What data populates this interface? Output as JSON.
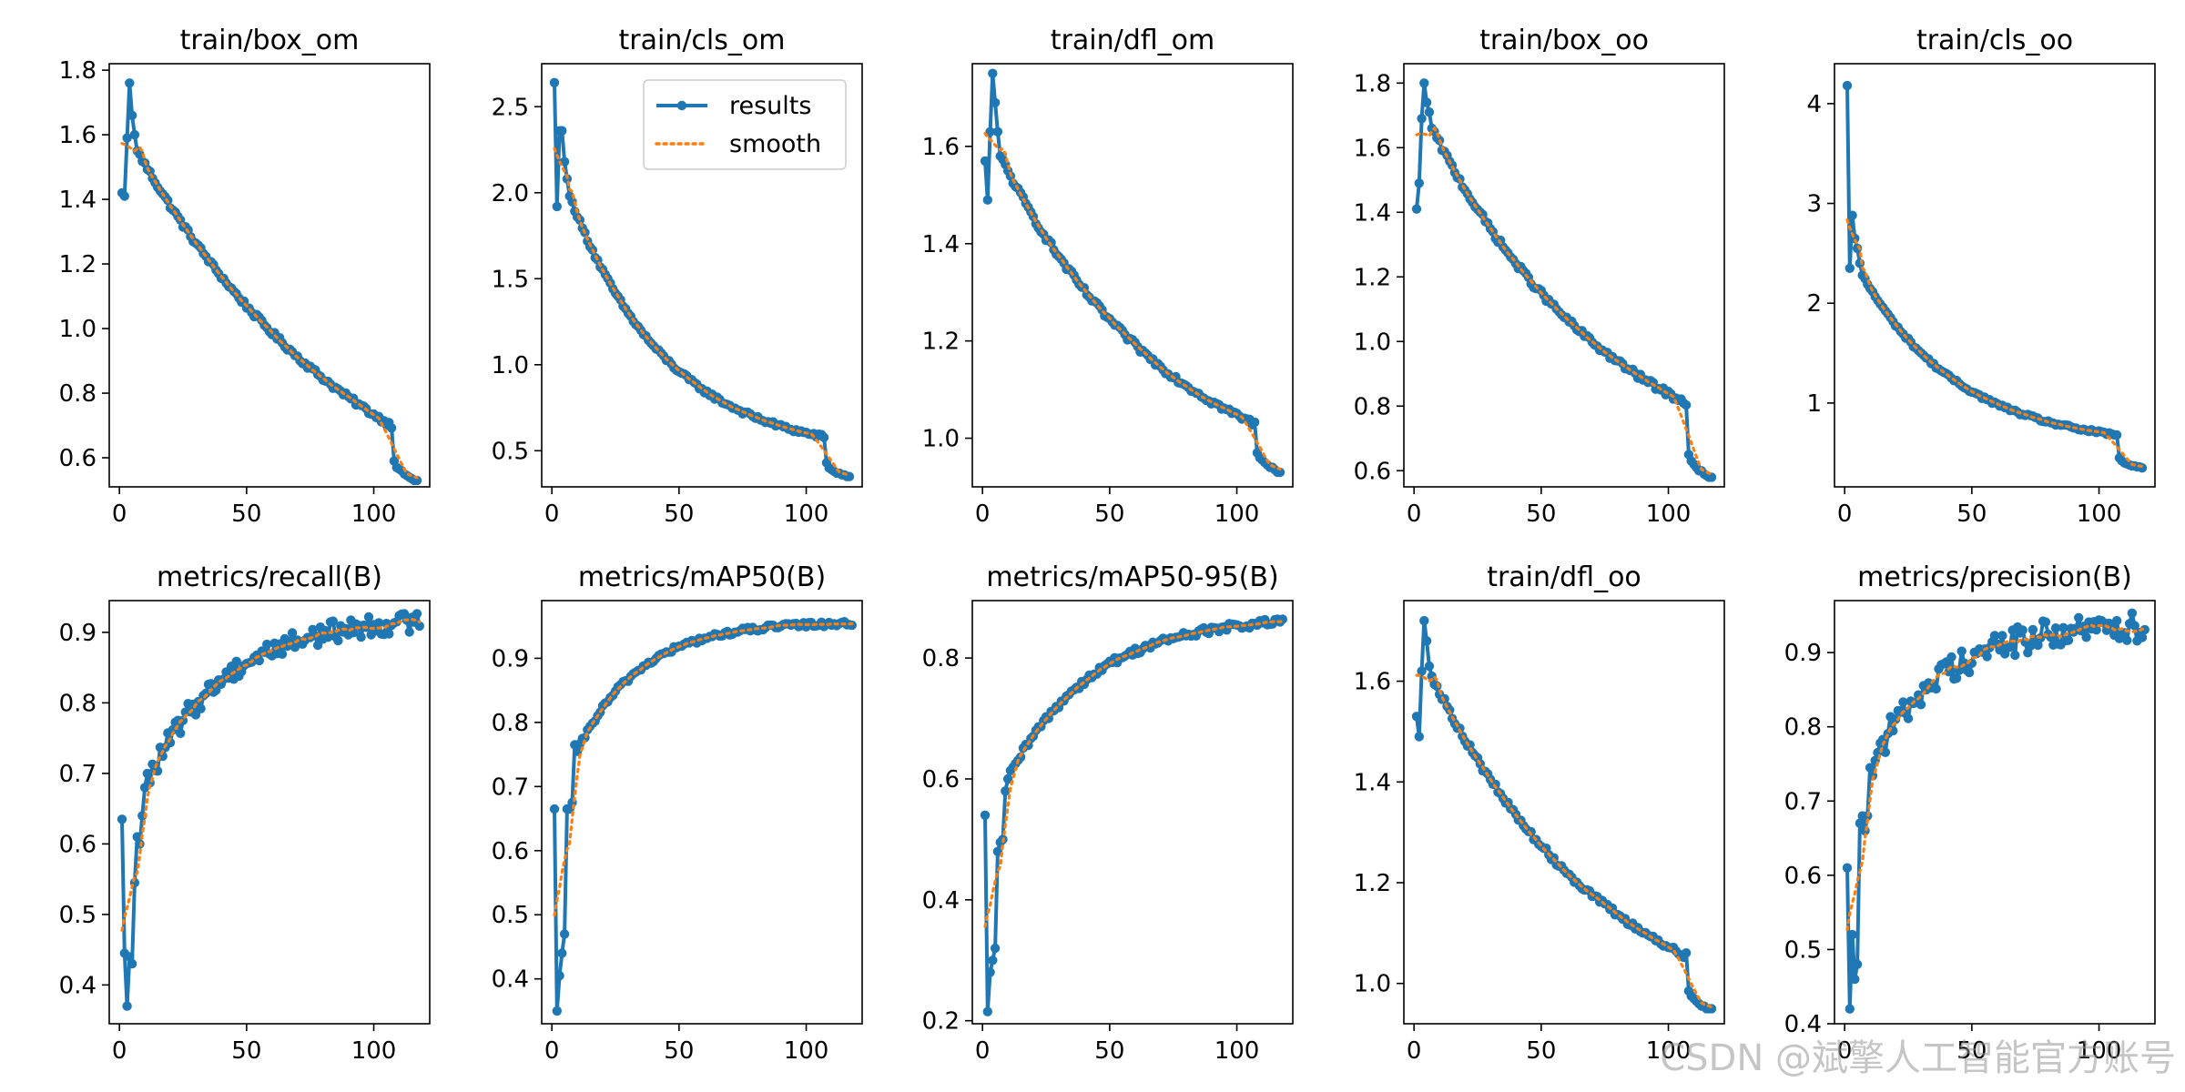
{
  "colors": {
    "results": "#1f77b4",
    "smooth": "#ff7f0e",
    "axis": "#000000"
  },
  "watermark": "CSDN @斌擎人工智能官方账号",
  "legend": {
    "results_label": "results",
    "smooth_label": "smooth"
  },
  "chart_data": [
    {
      "type": "line",
      "title": "train/box_om",
      "xticks": [
        0,
        50,
        100
      ],
      "xlim": [
        -4,
        122
      ],
      "yticks": [
        0.6,
        0.8,
        1.0,
        1.2,
        1.4,
        1.6,
        1.8
      ],
      "ytick_labels": [
        "0.6",
        "0.8",
        "1.0",
        "1.2",
        "1.4",
        "1.6",
        "1.8"
      ],
      "ylim": [
        0.51,
        1.82
      ],
      "spikes": [
        [
          1,
          1.42
        ],
        [
          2,
          1.41
        ],
        [
          3,
          1.59
        ],
        [
          4,
          1.76
        ],
        [
          5,
          1.66
        ],
        [
          6,
          1.6
        ],
        [
          7,
          1.55
        ]
      ],
      "decay": {
        "x0": 7,
        "y0": 1.55,
        "x1": 107,
        "y1": 0.7,
        "shape": 1.1,
        "wiggle": 0.008
      },
      "drop": {
        "x": 108,
        "values": [
          0.59,
          0.57,
          0.565,
          0.56,
          0.55,
          0.545,
          0.54,
          0.535,
          0.53,
          0.53
        ]
      },
      "legend": false
    },
    {
      "type": "line",
      "title": "train/cls_om",
      "xticks": [
        0,
        50,
        100
      ],
      "xlim": [
        -4,
        122
      ],
      "yticks": [
        0.5,
        1.0,
        1.5,
        2.0,
        2.5
      ],
      "ytick_labels": [
        "0.5",
        "1.0",
        "1.5",
        "2.0",
        "2.5"
      ],
      "ylim": [
        0.29,
        2.75
      ],
      "spikes": [
        [
          1,
          2.64
        ],
        [
          2,
          1.92
        ],
        [
          3,
          2.36
        ],
        [
          4,
          2.36
        ],
        [
          5,
          2.18
        ],
        [
          6,
          2.08
        ],
        [
          7,
          1.98
        ]
      ],
      "decay": {
        "x0": 7,
        "y0": 1.98,
        "x1": 107,
        "y1": 0.58,
        "shape": 2.6,
        "wiggle": 0.012
      },
      "drop": {
        "x": 108,
        "values": [
          0.43,
          0.4,
          0.39,
          0.38,
          0.37,
          0.37,
          0.36,
          0.36,
          0.35,
          0.35
        ]
      },
      "legend": true
    },
    {
      "type": "line",
      "title": "train/dfl_om",
      "xticks": [
        0,
        50,
        100
      ],
      "xlim": [
        -4,
        122
      ],
      "yticks": [
        1.0,
        1.2,
        1.4,
        1.6
      ],
      "ytick_labels": [
        "1.0",
        "1.2",
        "1.4",
        "1.6"
      ],
      "ylim": [
        0.9,
        1.77
      ],
      "spikes": [
        [
          1,
          1.57
        ],
        [
          2,
          1.49
        ],
        [
          3,
          1.63
        ],
        [
          4,
          1.75
        ],
        [
          5,
          1.69
        ],
        [
          6,
          1.63
        ],
        [
          7,
          1.58
        ]
      ],
      "decay": {
        "x0": 7,
        "y0": 1.58,
        "x1": 107,
        "y1": 1.03,
        "shape": 1.5,
        "wiggle": 0.006
      },
      "drop": {
        "x": 108,
        "values": [
          0.97,
          0.96,
          0.955,
          0.95,
          0.945,
          0.94,
          0.94,
          0.935,
          0.93,
          0.93
        ]
      },
      "legend": false
    },
    {
      "type": "line",
      "title": "train/box_oo",
      "xticks": [
        0,
        50,
        100
      ],
      "xlim": [
        -4,
        122
      ],
      "yticks": [
        0.6,
        0.8,
        1.0,
        1.2,
        1.4,
        1.6,
        1.8
      ],
      "ytick_labels": [
        "0.6",
        "0.8",
        "1.0",
        "1.2",
        "1.4",
        "1.6",
        "1.8"
      ],
      "ylim": [
        0.55,
        1.86
      ],
      "spikes": [
        [
          1,
          1.41
        ],
        [
          2,
          1.49
        ],
        [
          3,
          1.69
        ],
        [
          4,
          1.8
        ],
        [
          5,
          1.74
        ],
        [
          6,
          1.71
        ],
        [
          7,
          1.66
        ]
      ],
      "decay": {
        "x0": 7,
        "y0": 1.66,
        "x1": 107,
        "y1": 0.81,
        "shape": 1.4,
        "wiggle": 0.009
      },
      "drop": {
        "x": 108,
        "values": [
          0.65,
          0.63,
          0.62,
          0.61,
          0.6,
          0.6,
          0.59,
          0.585,
          0.58,
          0.58
        ]
      },
      "legend": false
    },
    {
      "type": "line",
      "title": "train/cls_oo",
      "xticks": [
        0,
        50,
        100
      ],
      "xlim": [
        -4,
        122
      ],
      "yticks": [
        1,
        2,
        3,
        4
      ],
      "ytick_labels": [
        "1",
        "2",
        "3",
        "4"
      ],
      "ylim": [
        0.16,
        4.4
      ],
      "spikes": [
        [
          1,
          4.18
        ],
        [
          2,
          2.35
        ],
        [
          3,
          2.88
        ],
        [
          4,
          2.65
        ],
        [
          5,
          2.55
        ],
        [
          6,
          2.4
        ],
        [
          7,
          2.28
        ]
      ],
      "decay": {
        "x0": 7,
        "y0": 2.28,
        "x1": 107,
        "y1": 0.68,
        "shape": 2.6,
        "wiggle": 0.015
      },
      "drop": {
        "x": 108,
        "values": [
          0.45,
          0.42,
          0.4,
          0.39,
          0.38,
          0.37,
          0.37,
          0.36,
          0.36,
          0.35
        ]
      },
      "legend": false
    },
    {
      "type": "line",
      "title": "metrics/recall(B)",
      "xticks": [
        0,
        50,
        100
      ],
      "xlim": [
        -4,
        122
      ],
      "yticks": [
        0.4,
        0.5,
        0.6,
        0.7,
        0.8,
        0.9
      ],
      "ytick_labels": [
        "0.4",
        "0.5",
        "0.6",
        "0.7",
        "0.8",
        "0.9"
      ],
      "ylim": [
        0.345,
        0.945
      ],
      "spikes": [
        [
          1,
          0.635
        ],
        [
          2,
          0.445
        ],
        [
          3,
          0.37
        ],
        [
          4,
          0.44
        ],
        [
          5,
          0.43
        ],
        [
          6,
          0.545
        ],
        [
          7,
          0.61
        ],
        [
          8,
          0.6
        ],
        [
          9,
          0.64
        ],
        [
          10,
          0.68
        ]
      ],
      "decay": {
        "x0": 10,
        "y0": 0.68,
        "x1": 118,
        "y1": 0.915,
        "shape": 3.6,
        "wiggle": 0.015
      },
      "drop": null,
      "legend": false
    },
    {
      "type": "line",
      "title": "metrics/mAP50(B)",
      "xticks": [
        0,
        50,
        100
      ],
      "xlim": [
        -4,
        122
      ],
      "yticks": [
        0.4,
        0.5,
        0.6,
        0.7,
        0.8,
        0.9
      ],
      "ytick_labels": [
        "0.4",
        "0.5",
        "0.6",
        "0.7",
        "0.8",
        "0.9"
      ],
      "ylim": [
        0.33,
        0.99
      ],
      "spikes": [
        [
          1,
          0.665
        ],
        [
          2,
          0.35
        ],
        [
          3,
          0.405
        ],
        [
          4,
          0.44
        ],
        [
          5,
          0.47
        ],
        [
          6,
          0.665
        ],
        [
          7,
          0.665
        ],
        [
          8,
          0.675
        ],
        [
          9,
          0.765
        ],
        [
          10,
          0.755
        ]
      ],
      "decay": {
        "x0": 10,
        "y0": 0.755,
        "x1": 118,
        "y1": 0.955,
        "shape": 4.4,
        "wiggle": 0.004
      },
      "drop": null,
      "legend": false
    },
    {
      "type": "line",
      "title": "metrics/mAP50-95(B)",
      "xticks": [
        0,
        50,
        100
      ],
      "xlim": [
        -4,
        122
      ],
      "yticks": [
        0.2,
        0.4,
        0.6,
        0.8
      ],
      "ytick_labels": [
        "0.2",
        "0.4",
        "0.6",
        "0.8"
      ],
      "ylim": [
        0.195,
        0.895
      ],
      "spikes": [
        [
          1,
          0.54
        ],
        [
          2,
          0.215
        ],
        [
          3,
          0.28
        ],
        [
          4,
          0.3
        ],
        [
          5,
          0.32
        ],
        [
          6,
          0.48
        ],
        [
          7,
          0.495
        ],
        [
          8,
          0.5
        ],
        [
          9,
          0.58
        ],
        [
          10,
          0.6
        ]
      ],
      "decay": {
        "x0": 10,
        "y0": 0.6,
        "x1": 118,
        "y1": 0.86,
        "shape": 3.3,
        "wiggle": 0.006
      },
      "drop": null,
      "legend": false
    },
    {
      "type": "line",
      "title": "train/dfl_oo",
      "xticks": [
        0,
        50,
        100
      ],
      "xlim": [
        -4,
        122
      ],
      "yticks": [
        1.0,
        1.2,
        1.4,
        1.6
      ],
      "ytick_labels": [
        "1.0",
        "1.2",
        "1.4",
        "1.6"
      ],
      "ylim": [
        0.92,
        1.76
      ],
      "spikes": [
        [
          1,
          1.53
        ],
        [
          2,
          1.49
        ],
        [
          3,
          1.62
        ],
        [
          4,
          1.72
        ],
        [
          5,
          1.68
        ],
        [
          6,
          1.63
        ],
        [
          7,
          1.61
        ]
      ],
      "decay": {
        "x0": 7,
        "y0": 1.61,
        "x1": 107,
        "y1": 1.055,
        "shape": 1.45,
        "wiggle": 0.006
      },
      "drop": {
        "x": 108,
        "values": [
          0.985,
          0.975,
          0.97,
          0.965,
          0.96,
          0.955,
          0.955,
          0.95,
          0.95,
          0.95
        ]
      },
      "legend": false
    },
    {
      "type": "line",
      "title": "metrics/precision(B)",
      "xticks": [
        0,
        50,
        100
      ],
      "xlim": [
        -4,
        122
      ],
      "yticks": [
        0.4,
        0.5,
        0.6,
        0.7,
        0.8,
        0.9
      ],
      "ytick_labels": [
        "0.4",
        "0.5",
        "0.6",
        "0.7",
        "0.8",
        "0.9"
      ],
      "ylim": [
        0.4,
        0.97
      ],
      "spikes": [
        [
          1,
          0.61
        ],
        [
          2,
          0.42
        ],
        [
          3,
          0.52
        ],
        [
          4,
          0.46
        ],
        [
          5,
          0.48
        ],
        [
          6,
          0.67
        ],
        [
          7,
          0.68
        ],
        [
          8,
          0.66
        ],
        [
          9,
          0.68
        ],
        [
          10,
          0.745
        ]
      ],
      "decay": {
        "x0": 10,
        "y0": 0.745,
        "x1": 118,
        "y1": 0.935,
        "shape": 4.0,
        "wiggle": 0.02
      },
      "drop": null,
      "legend": false
    }
  ]
}
